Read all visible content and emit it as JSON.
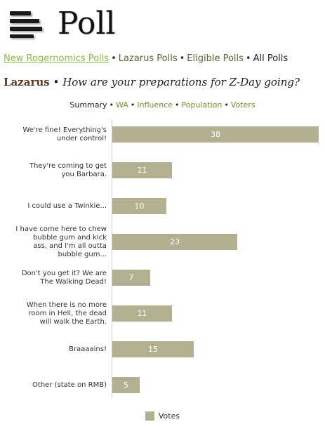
{
  "header": {
    "title": "Poll",
    "menu_icon": "menu-icon"
  },
  "nav": {
    "items": [
      {
        "label": "New Rogernomics Polls",
        "state": "active"
      },
      {
        "label": "Lazarus Polls",
        "state": "link"
      },
      {
        "label": "Eligible Polls",
        "state": "link"
      },
      {
        "label": "All Polls",
        "state": "current"
      }
    ],
    "separator": "•"
  },
  "poll": {
    "region": "Lazarus",
    "separator": "•",
    "question": "How are your preparations for Z-Day going?"
  },
  "subnav": {
    "items": [
      {
        "label": "Summary",
        "state": "current"
      },
      {
        "label": "WA",
        "state": "link"
      },
      {
        "label": "Influence",
        "state": "link"
      },
      {
        "label": "Population",
        "state": "link"
      },
      {
        "label": "Voters",
        "state": "link"
      }
    ],
    "separator": "•"
  },
  "colors": {
    "bar": "#b2b090",
    "active_link": "#88bb44",
    "link": "#556633",
    "region": "#5a3a22"
  },
  "chart_data": {
    "type": "bar",
    "orientation": "horizontal",
    "categories": [
      "We're fine! Everything's under control!",
      "They're coming to get you Barbara.",
      "I could use a Twinkie...",
      "I have come here to chew bubble gum and kick ass, and I'm all outta bubble gum...",
      "Don't you get it? We are The Walking Dead!",
      "When there is no more room in Hell, the dead will walk the Earth.",
      "Braaaains!",
      "Other (state on RMB)"
    ],
    "series": [
      {
        "name": "Votes",
        "values": [
          38,
          11,
          10,
          23,
          7,
          11,
          15,
          5
        ]
      }
    ],
    "xlim": [
      0,
      38
    ],
    "grid": false,
    "legend_position": "bottom"
  }
}
